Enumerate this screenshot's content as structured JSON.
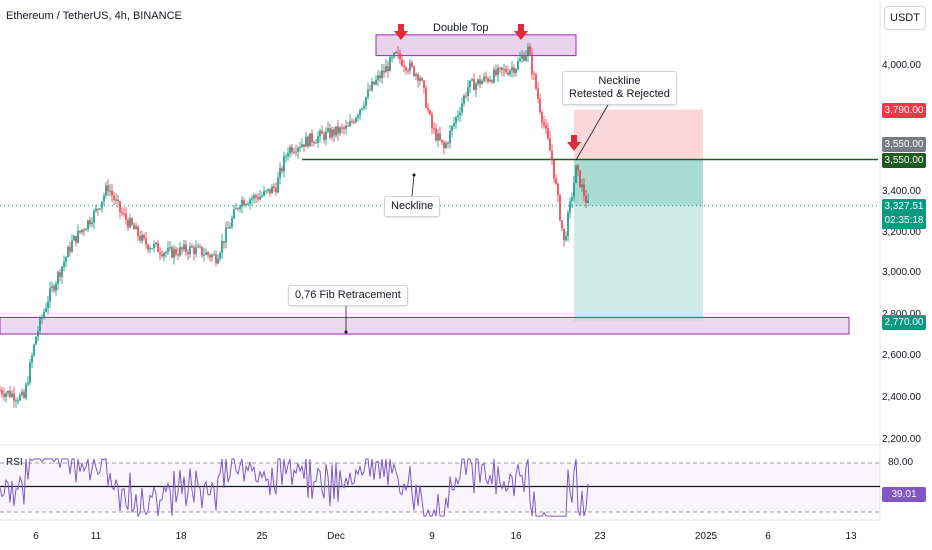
{
  "symbol": {
    "title": "Ethereum / TetherUS, 4h, BINANCE"
  },
  "currency": "USDT",
  "price_axis": {
    "ticks": [
      "4,000.00",
      "3,400.00",
      "3,200.00",
      "3,000.00",
      "2,800.00",
      "2,600.00",
      "2,400.00",
      "2,200.00"
    ]
  },
  "badges": {
    "stop": {
      "value": "3,790.00",
      "color": "#f23645"
    },
    "entry_gray": {
      "value": "3,550.00",
      "color": "#787b86"
    },
    "neckline": {
      "value": "3,550.00",
      "color": "#1e5b1e"
    },
    "last_price": {
      "value": "3,327.51",
      "countdown": "02:35:18",
      "color": "#089981"
    },
    "target": {
      "value": "2,770.00",
      "color": "#089981"
    }
  },
  "date_axis": {
    "ticks": [
      "6",
      "11",
      "18",
      "25",
      "Dec",
      "9",
      "16",
      "23",
      "2025",
      "6",
      "13"
    ]
  },
  "annotations": {
    "double_top": "Double Top",
    "neckline_label": "Neckline",
    "neckline_retest_line1": "Neckline",
    "neckline_retest_line2": "Retested & Rejected",
    "fib": "0,76 Fib Retracement"
  },
  "rsi": {
    "label": "RSI",
    "upper": "80.00",
    "value": "39.01",
    "color": "#7e57c2"
  },
  "chart_data": {
    "type": "candlestick",
    "title": "Ethereum / TetherUS, 4h, BINANCE",
    "y_unit": "USDT",
    "ylim": [
      2200,
      4250
    ],
    "x_ticks": [
      "6",
      "11",
      "18",
      "25",
      "Dec",
      "9",
      "16",
      "23",
      "2025",
      "6",
      "13"
    ],
    "close_path": [
      [
        "Nov 3",
        2440
      ],
      [
        "Nov 5",
        2400
      ],
      [
        "Nov 6",
        2700
      ],
      [
        "Nov 7",
        2880
      ],
      [
        "Nov 9",
        3150
      ],
      [
        "Nov 11",
        3300
      ],
      [
        "Nov 12",
        3420
      ],
      [
        "Nov 13",
        3300
      ],
      [
        "Nov 15",
        3150
      ],
      [
        "Nov 17",
        3100
      ],
      [
        "Nov 19",
        3120
      ],
      [
        "Nov 21",
        3080
      ],
      [
        "Nov 23",
        3350
      ],
      [
        "Nov 25",
        3380
      ],
      [
        "Nov 26",
        3420
      ],
      [
        "Nov 27",
        3600
      ],
      [
        "Nov 29",
        3650
      ],
      [
        "Dec 2",
        3700
      ],
      [
        "Dec 4",
        3900
      ],
      [
        "Dec 6",
        4050
      ],
      [
        "Dec 8",
        3950
      ],
      [
        "Dec 9",
        3700
      ],
      [
        "Dec 10",
        3600
      ],
      [
        "Dec 12",
        3900
      ],
      [
        "Dec 14",
        3950
      ],
      [
        "Dec 16",
        4000
      ],
      [
        "Dec 17",
        4080
      ],
      [
        "Dec 18",
        3800
      ],
      [
        "Dec 19",
        3550
      ],
      [
        "Dec 20",
        3150
      ],
      [
        "Dec 21",
        3500
      ],
      [
        "Dec 22",
        3327.51
      ]
    ],
    "levels": {
      "double_top_zone": [
        4050,
        4150
      ],
      "neckline": 3550,
      "stop": 3790,
      "target": 2770,
      "fib_zone": [
        2710,
        2790
      ]
    },
    "rsi_last": 39.01
  }
}
